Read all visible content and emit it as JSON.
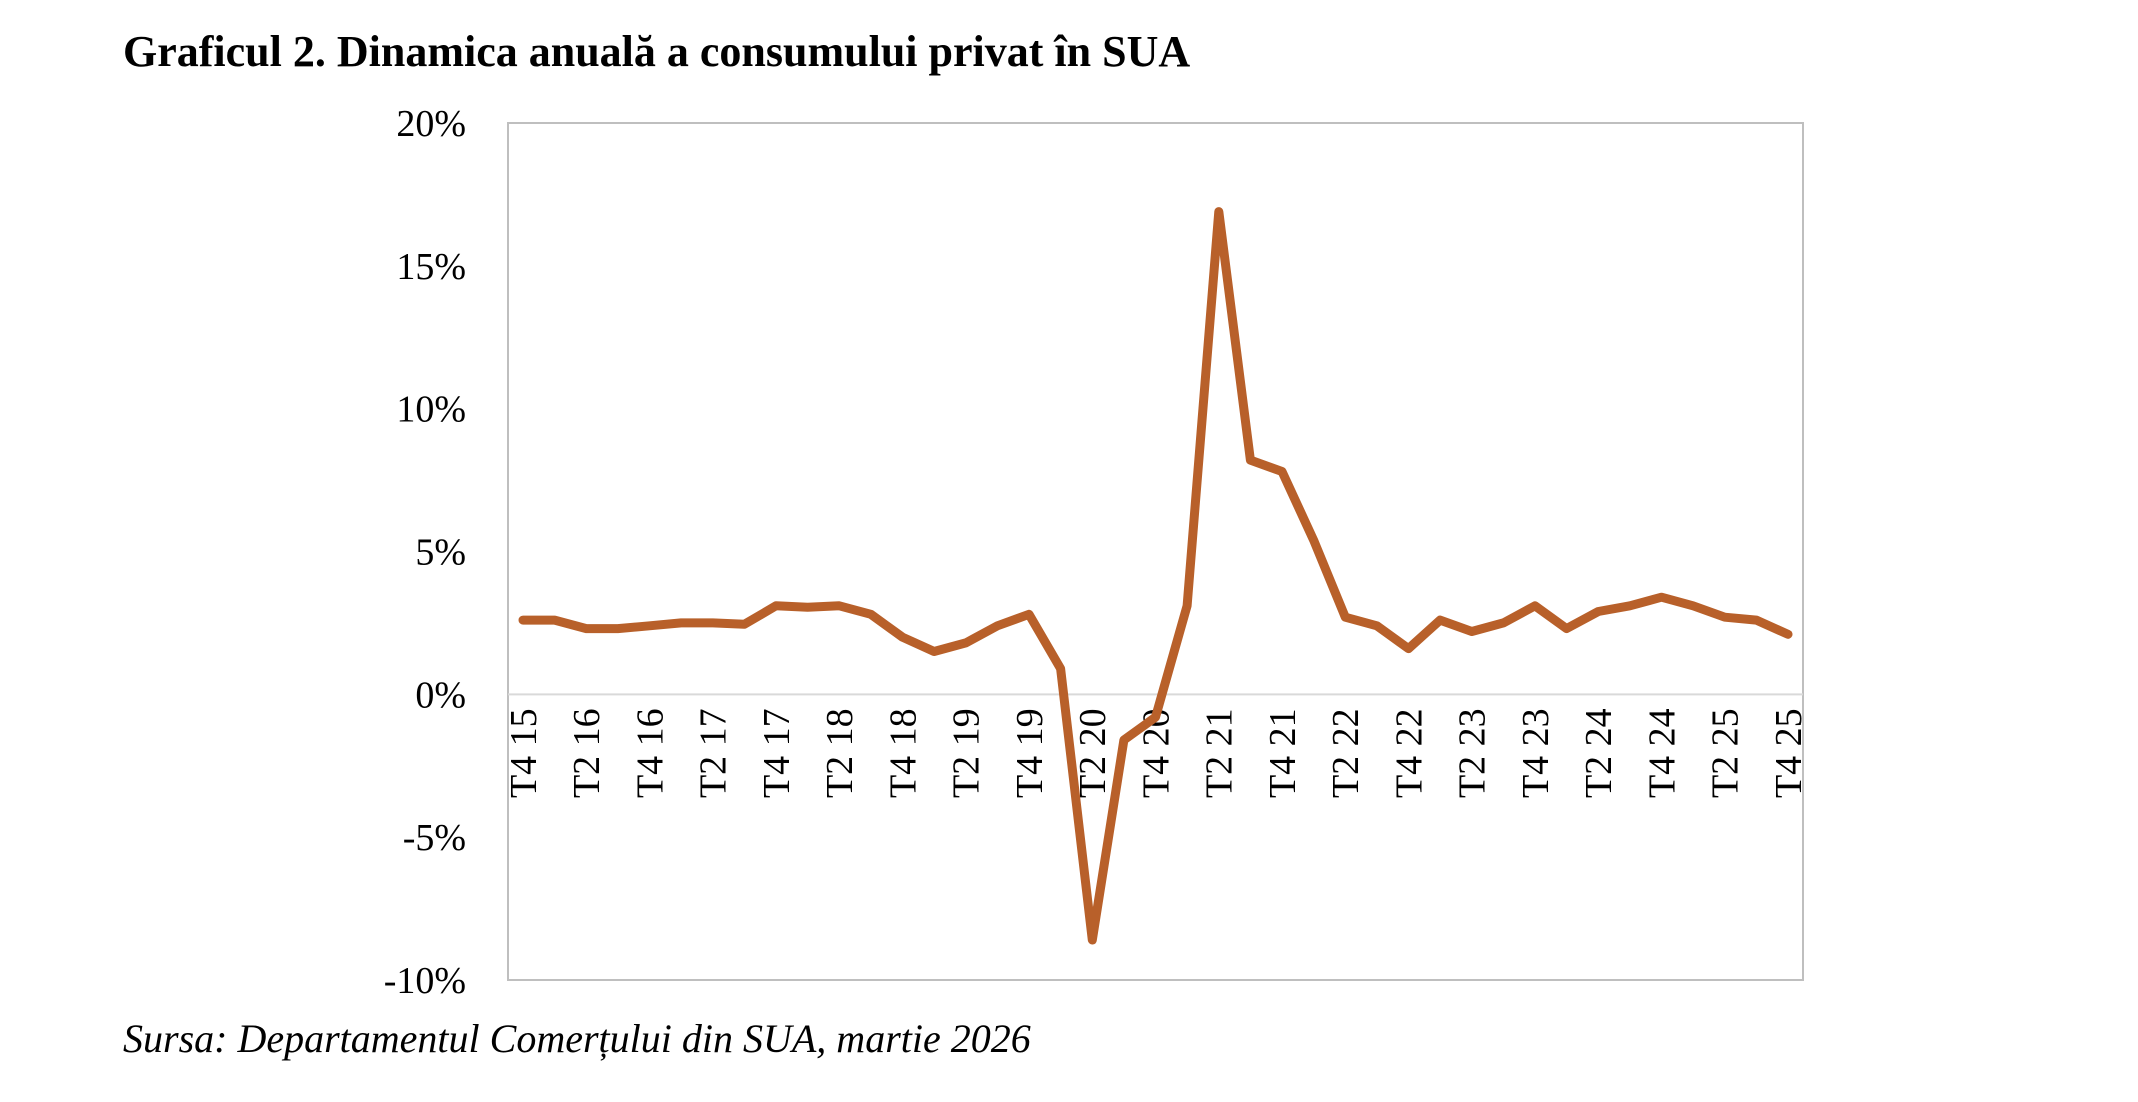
{
  "chart_data": {
    "type": "line",
    "title": "Graficul 2. Dinamica anuală a consumului privat în SUA",
    "source": "Sursa: Departamentul Comerțului din SUA, martie 2026",
    "xlabel": "",
    "ylabel": "",
    "ylim": [
      -10,
      20
    ],
    "y_ticks": [
      -10,
      -5,
      0,
      5,
      10,
      15,
      20
    ],
    "y_tick_labels": [
      "-10%",
      "-5%",
      "0%",
      "5%",
      "10%",
      "15%",
      "20%"
    ],
    "x_tick_labels": [
      "T4 15",
      "T2 16",
      "T4 16",
      "T2 17",
      "T4 17",
      "T2 18",
      "T4 18",
      "T2 19",
      "T4 19",
      "T2 20",
      "T4 20",
      "T2 21",
      "T4 21",
      "T2 22",
      "T4 22",
      "T2 23",
      "T4 23",
      "T2 24",
      "T4 24",
      "T2 25",
      "T4 25"
    ],
    "values": [
      2.6,
      2.6,
      2.3,
      2.3,
      2.4,
      2.5,
      2.5,
      2.45,
      3.1,
      3.05,
      3.1,
      2.8,
      2.0,
      1.5,
      1.8,
      2.4,
      2.8,
      0.9,
      -8.6,
      -1.6,
      -0.8,
      3.1,
      16.9,
      8.2,
      7.8,
      5.4,
      2.7,
      2.4,
      1.6,
      2.6,
      2.2,
      2.5,
      3.1,
      2.3,
      2.9,
      3.1,
      3.4,
      3.1,
      2.7,
      2.6,
      2.1
    ],
    "grid": false,
    "zero_line": true,
    "legend": "none",
    "colors": {
      "line": "#B8602A",
      "axis": "#BFBFBF",
      "zero_line": "#D9D9D9"
    }
  }
}
